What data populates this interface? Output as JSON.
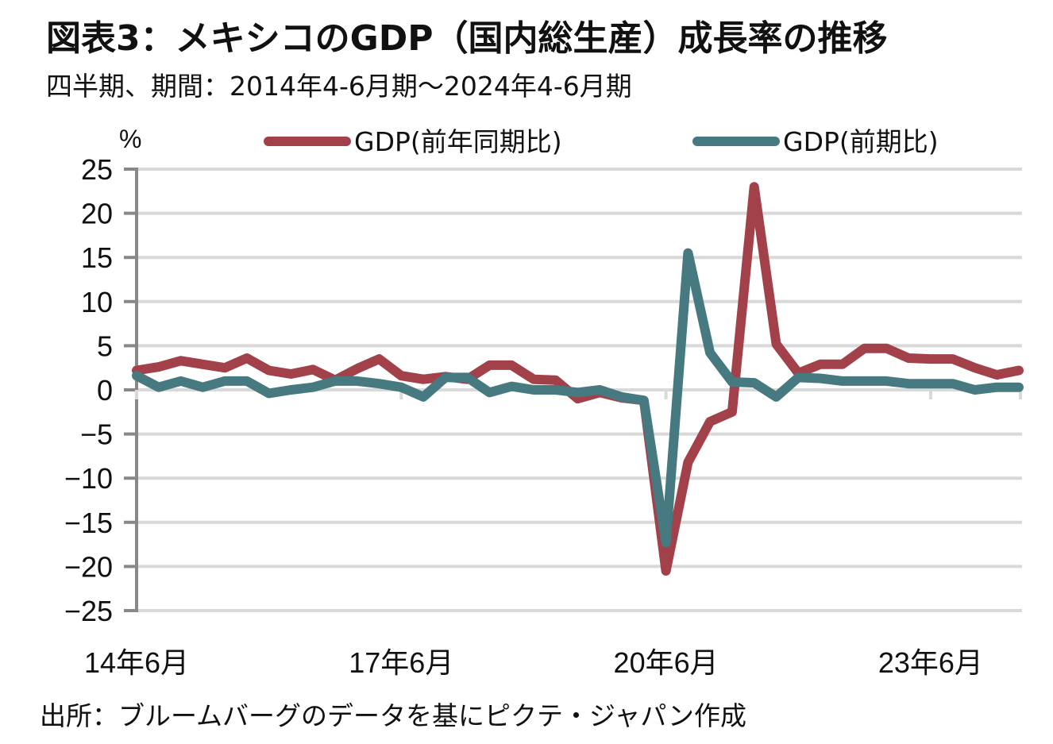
{
  "title": "図表3：メキシコのGDP（国内総生産）成長率の推移",
  "subtitle": "四半期、期間：2014年4-6月期～2024年4-6月期",
  "source": "出所：ブルームバーグのデータを基にピクテ・ジャパン作成",
  "chart_data": {
    "type": "line",
    "title": "図表3：メキシコのGDP（国内総生産）成長率の推移",
    "ylabel": "%",
    "xlabel": "",
    "ylim": [
      -25,
      25
    ],
    "yticks": [
      25,
      20,
      15,
      10,
      5,
      0,
      -5,
      -10,
      -15,
      -20,
      -25
    ],
    "ytick_labels": [
      "25",
      "20",
      "15",
      "10",
      "5",
      "0",
      "-5",
      "-10",
      "-15",
      "-20",
      "-25"
    ],
    "xtick_labels": [
      {
        "label": "14年6月",
        "index": 0
      },
      {
        "label": "17年6月",
        "index": 12
      },
      {
        "label": "20年6月",
        "index": 24
      },
      {
        "label": "23年6月",
        "index": 36
      }
    ],
    "grid": true,
    "legend_position": "top",
    "x": [
      "2014Q2",
      "2014Q3",
      "2014Q4",
      "2015Q1",
      "2015Q2",
      "2015Q3",
      "2015Q4",
      "2016Q1",
      "2016Q2",
      "2016Q3",
      "2016Q4",
      "2017Q1",
      "2017Q2",
      "2017Q3",
      "2017Q4",
      "2018Q1",
      "2018Q2",
      "2018Q3",
      "2018Q4",
      "2019Q1",
      "2019Q2",
      "2019Q3",
      "2019Q4",
      "2020Q1",
      "2020Q2",
      "2020Q3",
      "2020Q4",
      "2021Q1",
      "2021Q2",
      "2021Q3",
      "2021Q4",
      "2022Q1",
      "2022Q2",
      "2022Q3",
      "2022Q4",
      "2023Q1",
      "2023Q2",
      "2023Q3",
      "2023Q4",
      "2024Q1",
      "2024Q2"
    ],
    "series": [
      {
        "name": "GDP(前年同期比)",
        "color": "#a3414a",
        "values": [
          2.2,
          2.6,
          3.3,
          2.9,
          2.5,
          3.6,
          2.2,
          1.8,
          2.3,
          1.1,
          2.4,
          3.5,
          1.6,
          1.2,
          1.5,
          1.2,
          2.8,
          2.8,
          1.2,
          1.1,
          -1.0,
          -0.3,
          -0.9,
          -1.2,
          -20.5,
          -8.2,
          -3.6,
          -2.5,
          23.0,
          5.2,
          1.9,
          2.9,
          2.9,
          4.7,
          4.7,
          3.6,
          3.5,
          3.5,
          2.5,
          1.7,
          2.2
        ]
      },
      {
        "name": "GDP(前期比)",
        "color": "#467a80",
        "values": [
          1.6,
          0.3,
          1.0,
          0.3,
          1.0,
          1.0,
          -0.4,
          0.0,
          0.3,
          1.0,
          1.0,
          0.7,
          0.3,
          -0.8,
          1.4,
          1.4,
          -0.3,
          0.4,
          0.0,
          0.0,
          -0.3,
          0.0,
          -0.8,
          -1.2,
          -17.3,
          15.5,
          4.2,
          0.9,
          0.8,
          -0.8,
          1.4,
          1.3,
          1.0,
          1.0,
          1.0,
          0.7,
          0.7,
          0.7,
          0.0,
          0.3,
          0.3
        ]
      }
    ]
  }
}
